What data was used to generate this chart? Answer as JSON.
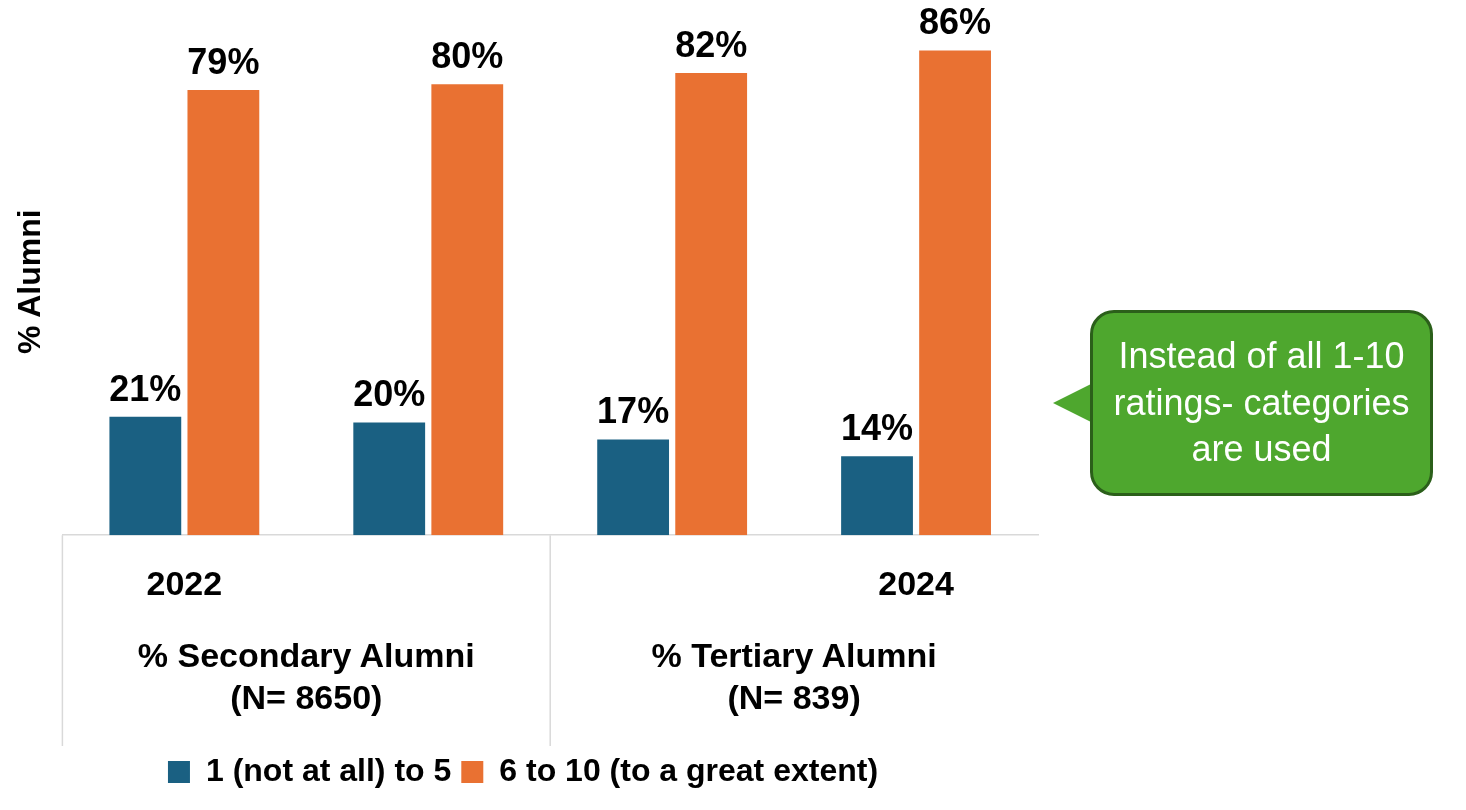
{
  "chart_data": {
    "type": "bar",
    "ylabel": "% Alumni",
    "categories": [
      "2022",
      null,
      null,
      "2024"
    ],
    "series": [
      {
        "name": "1 (not at all) to 5",
        "color": "#1a6082",
        "values": [
          21,
          20,
          17,
          14
        ],
        "value_labels": [
          "21%",
          "20%",
          "17%",
          "14%"
        ]
      },
      {
        "name": "6 to 10 (to a great extent)",
        "color": "#e97132",
        "values": [
          79,
          80,
          82,
          86
        ],
        "value_labels": [
          "79%",
          "80%",
          "82%",
          "86%"
        ]
      }
    ],
    "annotations": [
      "% Secondary Alumni\n(N= 8650)",
      "% Tertiary Alumni\n(N= 839)",
      "Instead of all 1-10 ratings- categories are used"
    ],
    "legend": "bottom",
    "grid": false
  }
}
